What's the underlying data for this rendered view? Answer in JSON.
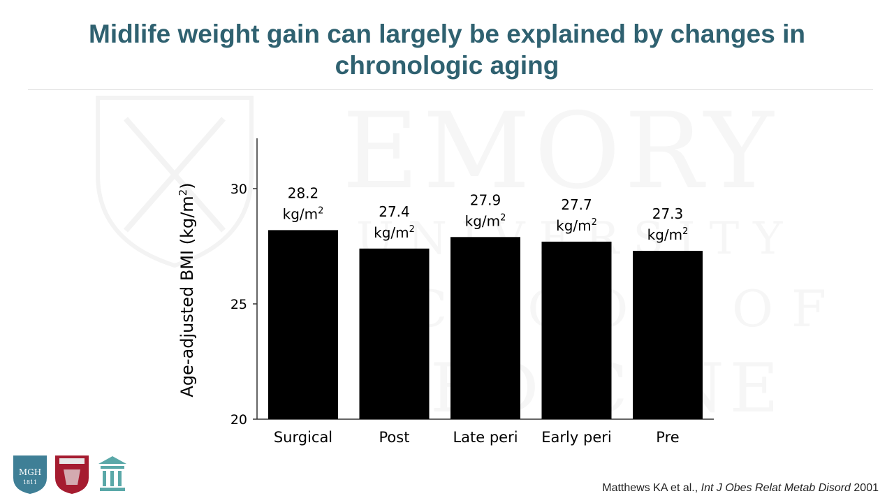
{
  "slide": {
    "title_line1": "Midlife weight gain can largely be explained by changes in",
    "title_line2": "chronologic aging",
    "watermark": {
      "line1": "EMORY",
      "line2": "UNIVERSITY",
      "line3": "SCHOOL OF",
      "line4": "MEDICINE"
    },
    "citation": {
      "authors": "Matthews KA et al.,",
      "journal": "Int J Obes Relat Metab Disord",
      "year": "2001"
    },
    "logos": [
      {
        "name": "mgh-logo",
        "text": "MGH",
        "sub": "1811"
      },
      {
        "name": "harvard-shield-logo"
      },
      {
        "name": "columns-logo"
      }
    ]
  },
  "chart_data": {
    "type": "bar",
    "categories": [
      "Surgical",
      "Post",
      "Late peri",
      "Early peri",
      "Pre"
    ],
    "values": [
      28.2,
      27.4,
      27.9,
      27.7,
      27.3
    ],
    "value_unit_prefix": "kg/m",
    "value_unit_sup": "2",
    "ylabel": "Age-adjusted BMI (kg/m",
    "ylabel_sup": "2",
    "ylabel_close": ")",
    "ylim": [
      20,
      32
    ],
    "yticks": [
      20,
      25,
      30
    ],
    "bar_color": "#000000",
    "grid": false
  }
}
